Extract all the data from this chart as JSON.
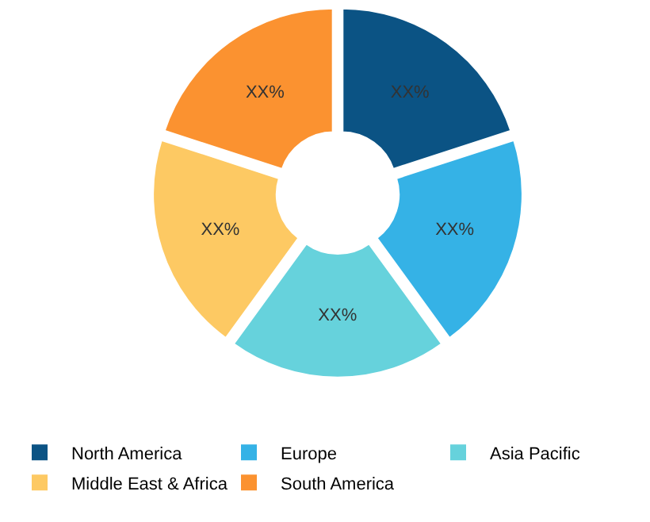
{
  "chart_data": {
    "type": "donut",
    "categories": [
      "North America",
      "Europe",
      "Asia Pacific",
      "Middle East & Africa",
      "South America"
    ],
    "values": [
      20,
      20,
      20,
      20,
      20
    ],
    "colors": [
      "#0b5384",
      "#35b2e6",
      "#66d2dc",
      "#fdc963",
      "#fb9230"
    ],
    "value_labels": [
      "XX%",
      "XX%",
      "XX%",
      "XX%",
      "XX%"
    ],
    "legend": "bottom"
  }
}
